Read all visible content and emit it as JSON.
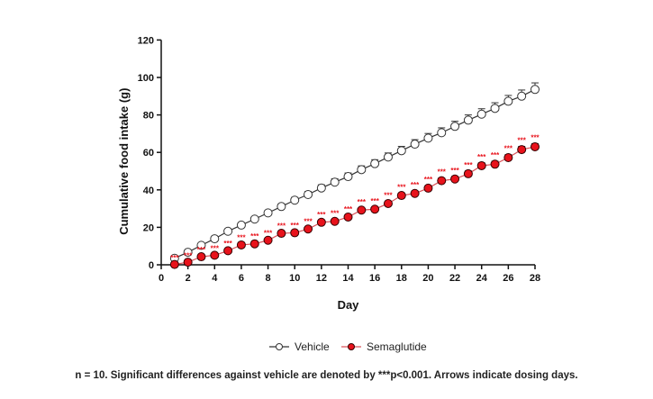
{
  "chart_data": {
    "type": "line",
    "xlabel": "Day",
    "ylabel": "Cumulative food intake (g)",
    "xlim": [
      0,
      28
    ],
    "ylim": [
      0,
      120
    ],
    "xticks": [
      0,
      2,
      4,
      6,
      8,
      10,
      12,
      14,
      16,
      18,
      20,
      22,
      24,
      26,
      28
    ],
    "yticks": [
      0,
      20,
      40,
      60,
      80,
      100,
      120
    ],
    "grid": false,
    "legend_placement": "bottom",
    "x": [
      1,
      2,
      3,
      4,
      5,
      6,
      7,
      8,
      9,
      10,
      11,
      12,
      13,
      14,
      15,
      16,
      17,
      18,
      19,
      20,
      21,
      22,
      23,
      24,
      25,
      26,
      27,
      28
    ],
    "series": [
      {
        "name": "Vehicle",
        "color": "#333333",
        "marker": "open-circle",
        "values": [
          3.5,
          6.7,
          10.4,
          13.9,
          17.9,
          21.2,
          24.4,
          27.7,
          31.1,
          34.5,
          37.5,
          41.0,
          44.1,
          47.1,
          50.8,
          54.0,
          57.5,
          60.9,
          64.4,
          67.6,
          70.5,
          73.9,
          77.2,
          80.4,
          83.5,
          87.3,
          90.0,
          93.6
        ],
        "error": [
          0.6,
          0.7,
          0.8,
          0.9,
          1.0,
          1.1,
          1.2,
          1.3,
          1.4,
          1.5,
          1.6,
          1.7,
          1.8,
          1.9,
          2.0,
          2.1,
          2.2,
          2.3,
          2.4,
          2.5,
          2.6,
          2.7,
          2.8,
          2.9,
          3.0,
          3.1,
          3.3,
          3.5
        ]
      },
      {
        "name": "Semaglutide",
        "color": "#e8121b",
        "marker": "filled-circle",
        "values": [
          0.2,
          1.4,
          4.3,
          5.1,
          7.5,
          10.6,
          11.2,
          13.1,
          16.8,
          17.1,
          19.1,
          22.7,
          23.2,
          25.5,
          29.2,
          29.7,
          32.7,
          37.0,
          38.1,
          40.9,
          44.9,
          45.8,
          48.6,
          52.9,
          53.7,
          57.2,
          61.5,
          63.0
        ],
        "error": [
          0.3,
          0.4,
          0.5,
          0.5,
          0.6,
          0.6,
          0.7,
          0.7,
          0.8,
          0.8,
          0.9,
          0.9,
          1.0,
          1.0,
          1.1,
          1.1,
          1.2,
          1.2,
          1.3,
          1.3,
          1.4,
          1.4,
          1.5,
          1.5,
          1.6,
          1.6,
          1.7,
          1.7
        ]
      }
    ],
    "annotations": {
      "significance_marker": "***",
      "days": [
        1,
        2,
        3,
        4,
        5,
        6,
        7,
        8,
        9,
        10,
        11,
        12,
        13,
        14,
        15,
        16,
        17,
        18,
        19,
        20,
        21,
        22,
        23,
        24,
        25,
        26,
        27,
        28
      ],
      "color": "#e8121b"
    }
  },
  "caption": "n = 10. Significant differences against vehicle are denoted by ***p<0.001. Arrows indicate dosing days."
}
